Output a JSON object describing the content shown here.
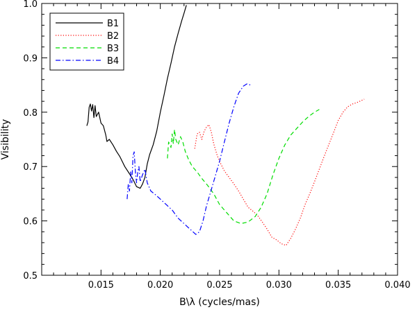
{
  "chart_data": {
    "type": "line",
    "xlabel": "B\\λ (cycles/mas)",
    "ylabel": "Visibility",
    "xlim": [
      0.01,
      0.04
    ],
    "ylim": [
      0.5,
      1.0
    ],
    "x_ticks": [
      0.015,
      0.02,
      0.025,
      0.03,
      0.035,
      0.04
    ],
    "x_tick_labels": [
      "0.015",
      "0.020",
      "0.025",
      "0.030",
      "0.035",
      "0.040"
    ],
    "y_ticks": [
      0.5,
      0.6,
      0.7,
      0.8,
      0.9,
      1.0
    ],
    "y_tick_labels": [
      "0.5",
      "0.6",
      "0.7",
      "0.8",
      "0.9",
      "1.0"
    ],
    "grid": false,
    "legend_position": "top-left",
    "series": [
      {
        "name": "B1",
        "color": "#000000",
        "dash": "solid",
        "points": [
          [
            0.0138,
            0.775
          ],
          [
            0.0139,
            0.782
          ],
          [
            0.014,
            0.809
          ],
          [
            0.0141,
            0.815
          ],
          [
            0.0142,
            0.802
          ],
          [
            0.0143,
            0.814
          ],
          [
            0.0144,
            0.79
          ],
          [
            0.0145,
            0.812
          ],
          [
            0.0146,
            0.792
          ],
          [
            0.0148,
            0.8
          ],
          [
            0.015,
            0.78
          ],
          [
            0.0152,
            0.775
          ],
          [
            0.0154,
            0.758
          ],
          [
            0.0155,
            0.746
          ],
          [
            0.0157,
            0.75
          ],
          [
            0.016,
            0.74
          ],
          [
            0.0163,
            0.728
          ],
          [
            0.0166,
            0.718
          ],
          [
            0.017,
            0.7
          ],
          [
            0.0173,
            0.69
          ],
          [
            0.0176,
            0.68
          ],
          [
            0.0178,
            0.672
          ],
          [
            0.018,
            0.663
          ],
          [
            0.0183,
            0.66
          ],
          [
            0.0185,
            0.668
          ],
          [
            0.0187,
            0.68
          ],
          [
            0.0189,
            0.705
          ],
          [
            0.0191,
            0.722
          ],
          [
            0.0194,
            0.74
          ],
          [
            0.0197,
            0.765
          ],
          [
            0.02,
            0.8
          ],
          [
            0.0203,
            0.83
          ],
          [
            0.0206,
            0.862
          ],
          [
            0.0209,
            0.89
          ],
          [
            0.0212,
            0.92
          ],
          [
            0.0215,
            0.945
          ],
          [
            0.0218,
            0.968
          ],
          [
            0.022,
            0.982
          ],
          [
            0.0222,
            0.997
          ]
        ]
      },
      {
        "name": "B2",
        "color": "#ff0000",
        "dash": "dotted",
        "points": [
          [
            0.0229,
            0.733
          ],
          [
            0.0231,
            0.76
          ],
          [
            0.0233,
            0.763
          ],
          [
            0.0235,
            0.75
          ],
          [
            0.0237,
            0.765
          ],
          [
            0.0239,
            0.773
          ],
          [
            0.0241,
            0.777
          ],
          [
            0.0243,
            0.763
          ],
          [
            0.0245,
            0.742
          ],
          [
            0.0248,
            0.72
          ],
          [
            0.0251,
            0.705
          ],
          [
            0.0254,
            0.692
          ],
          [
            0.0258,
            0.68
          ],
          [
            0.0262,
            0.668
          ],
          [
            0.0266,
            0.655
          ],
          [
            0.027,
            0.64
          ],
          [
            0.0274,
            0.625
          ],
          [
            0.0278,
            0.618
          ],
          [
            0.0282,
            0.61
          ],
          [
            0.0286,
            0.598
          ],
          [
            0.029,
            0.585
          ],
          [
            0.0294,
            0.57
          ],
          [
            0.0298,
            0.565
          ],
          [
            0.0302,
            0.558
          ],
          [
            0.0306,
            0.555
          ],
          [
            0.031,
            0.568
          ],
          [
            0.0314,
            0.585
          ],
          [
            0.0318,
            0.605
          ],
          [
            0.0322,
            0.63
          ],
          [
            0.0326,
            0.65
          ],
          [
            0.033,
            0.672
          ],
          [
            0.0334,
            0.695
          ],
          [
            0.0338,
            0.718
          ],
          [
            0.0342,
            0.74
          ],
          [
            0.0346,
            0.762
          ],
          [
            0.035,
            0.785
          ],
          [
            0.0354,
            0.8
          ],
          [
            0.0358,
            0.81
          ],
          [
            0.0362,
            0.815
          ],
          [
            0.0366,
            0.818
          ],
          [
            0.037,
            0.822
          ],
          [
            0.0372,
            0.824
          ]
        ]
      },
      {
        "name": "B3",
        "color": "#00dd00",
        "dash": "dashed",
        "points": [
          [
            0.0206,
            0.715
          ],
          [
            0.0207,
            0.745
          ],
          [
            0.0209,
            0.735
          ],
          [
            0.021,
            0.76
          ],
          [
            0.0211,
            0.742
          ],
          [
            0.0212,
            0.768
          ],
          [
            0.0213,
            0.75
          ],
          [
            0.0215,
            0.74
          ],
          [
            0.0217,
            0.755
          ],
          [
            0.0219,
            0.745
          ],
          [
            0.0221,
            0.728
          ],
          [
            0.0224,
            0.712
          ],
          [
            0.0227,
            0.7
          ],
          [
            0.0231,
            0.69
          ],
          [
            0.0235,
            0.678
          ],
          [
            0.024,
            0.665
          ],
          [
            0.0245,
            0.65
          ],
          [
            0.025,
            0.63
          ],
          [
            0.0256,
            0.615
          ],
          [
            0.0262,
            0.6
          ],
          [
            0.0268,
            0.595
          ],
          [
            0.0274,
            0.598
          ],
          [
            0.028,
            0.608
          ],
          [
            0.0285,
            0.625
          ],
          [
            0.029,
            0.65
          ],
          [
            0.0295,
            0.685
          ],
          [
            0.03,
            0.715
          ],
          [
            0.0305,
            0.74
          ],
          [
            0.031,
            0.758
          ],
          [
            0.0315,
            0.77
          ],
          [
            0.032,
            0.782
          ],
          [
            0.0325,
            0.792
          ],
          [
            0.033,
            0.8
          ],
          [
            0.0334,
            0.805
          ]
        ]
      },
      {
        "name": "B4",
        "color": "#0000ff",
        "dash": "dashdot",
        "points": [
          [
            0.0172,
            0.64
          ],
          [
            0.0173,
            0.668
          ],
          [
            0.0174,
            0.655
          ],
          [
            0.0175,
            0.69
          ],
          [
            0.0176,
            0.67
          ],
          [
            0.0177,
            0.72
          ],
          [
            0.0178,
            0.727
          ],
          [
            0.0179,
            0.69
          ],
          [
            0.018,
            0.67
          ],
          [
            0.0181,
            0.69
          ],
          [
            0.0182,
            0.7
          ],
          [
            0.0183,
            0.672
          ],
          [
            0.0185,
            0.685
          ],
          [
            0.0187,
            0.695
          ],
          [
            0.0189,
            0.67
          ],
          [
            0.0192,
            0.655
          ],
          [
            0.0196,
            0.648
          ],
          [
            0.02,
            0.64
          ],
          [
            0.0205,
            0.63
          ],
          [
            0.021,
            0.62
          ],
          [
            0.0215,
            0.605
          ],
          [
            0.022,
            0.595
          ],
          [
            0.0225,
            0.585
          ],
          [
            0.023,
            0.575
          ],
          [
            0.0233,
            0.58
          ],
          [
            0.0236,
            0.6
          ],
          [
            0.0239,
            0.628
          ],
          [
            0.0242,
            0.65
          ],
          [
            0.0246,
            0.68
          ],
          [
            0.025,
            0.71
          ],
          [
            0.0254,
            0.745
          ],
          [
            0.0258,
            0.78
          ],
          [
            0.0262,
            0.81
          ],
          [
            0.0266,
            0.835
          ],
          [
            0.027,
            0.848
          ],
          [
            0.0273,
            0.852
          ],
          [
            0.0276,
            0.85
          ]
        ]
      }
    ]
  }
}
